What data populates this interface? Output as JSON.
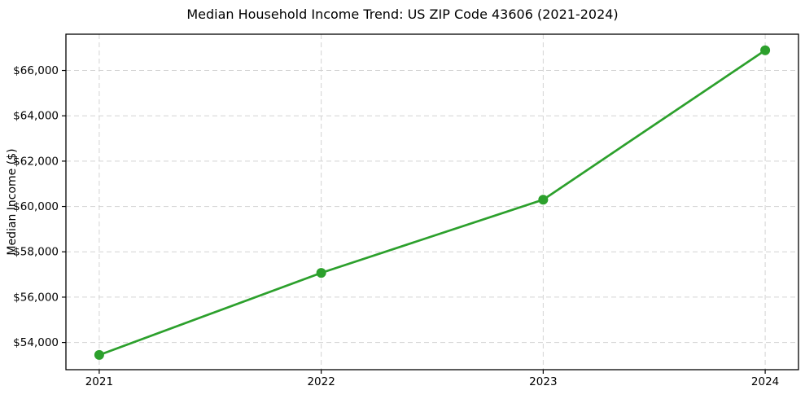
{
  "chart_data": {
    "type": "line",
    "title": "Median Household Income Trend: US ZIP Code 43606 (2021-2024)",
    "xlabel": "",
    "ylabel": "Median Income ($)",
    "x": [
      2021,
      2022,
      2023,
      2024
    ],
    "series": [
      {
        "name": "Median Household Income",
        "values": [
          53450,
          57070,
          60300,
          66890
        ]
      }
    ],
    "x_ticks": [
      2021,
      2022,
      2023,
      2024
    ],
    "x_tick_labels": [
      "2021",
      "2022",
      "2023",
      "2024"
    ],
    "y_ticks": [
      54000,
      56000,
      58000,
      60000,
      62000,
      64000,
      66000
    ],
    "y_tick_labels": [
      "$54,000",
      "$56,000",
      "$58,000",
      "$60,000",
      "$62,000",
      "$64,000",
      "$66,000"
    ],
    "xlim": [
      2020.85,
      2024.15
    ],
    "ylim": [
      52800,
      67600
    ],
    "grid": true,
    "grid_style": "dashed",
    "legend_position": "none",
    "colors": {
      "line": "#2ca02c",
      "marker": "#2ca02c",
      "grid": "#d3d3d3",
      "spine": "#000000",
      "background": "#ffffff",
      "text": "#000000"
    },
    "marker_shape": "circle"
  }
}
